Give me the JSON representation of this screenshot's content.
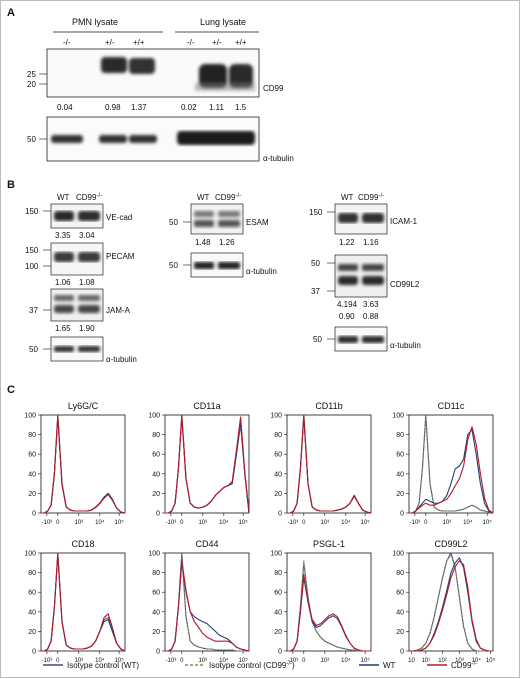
{
  "panelA": {
    "label": "A",
    "pmn_title": "PMN lysate",
    "lung_title": "Lung lysate",
    "genotypes": [
      "-/-",
      "+/-",
      "+/+",
      "-/-",
      "+/-",
      "+/+"
    ],
    "cd99_marker": "CD99",
    "mw_top": [
      "25",
      "20"
    ],
    "quant": [
      "0.04",
      "0.98",
      "1.37",
      "0.02",
      "1.11",
      "1.5"
    ],
    "mw_bottom": "50",
    "tubulin": "α-tubulin"
  },
  "panelB": {
    "label": "B",
    "wt": "WT",
    "ko": "CD99",
    "ko_sup": "-/-",
    "col1": {
      "vecad": {
        "name": "VE-cad",
        "mw": "150",
        "q1": "3.35",
        "q2": "3.04"
      },
      "pecam": {
        "name": "PECAM",
        "mw1": "150",
        "mw2": "100",
        "q1": "1.06",
        "q2": "1.08"
      },
      "jama": {
        "name": "JAM-A",
        "mw": "37",
        "q1": "1.65",
        "q2": "1.90"
      },
      "tub": {
        "name": "α-tubulin",
        "mw": "50"
      }
    },
    "col2": {
      "esam": {
        "name": "ESAM",
        "mw": "50",
        "q1": "1.48",
        "q2": "1.26"
      },
      "tub": {
        "name": "α-tubulin",
        "mw": "50"
      }
    },
    "col3": {
      "icam": {
        "name": "ICAM-1",
        "mw": "150",
        "q1": "1.22",
        "q2": "1.16"
      },
      "cd99l2": {
        "name": "CD99L2",
        "mw1": "50",
        "mw2": "37",
        "q1": "4.194",
        "q2": "3.63",
        "q3": "0.90",
        "q4": "0.88"
      },
      "tub": {
        "name": "α-tubulin",
        "mw": "50"
      }
    }
  },
  "panelC": {
    "label": "C",
    "legend": [
      "Isotype control (WT)",
      "Isotype control (CD99",
      "WT",
      "CD99"
    ],
    "legend_sup": "-/-",
    "legend_close": ")",
    "colors": {
      "iso_wt": "#5a3a8a",
      "iso_ko": "#6f9a4a",
      "wt": "#1c3f7a",
      "ko": "#b5182a"
    }
  },
  "chart_data": [
    {
      "type": "line",
      "title": "Ly6G/C",
      "ylim": [
        0,
        100
      ],
      "yticks": [
        "0",
        "20",
        "40",
        "60",
        "80",
        "100"
      ],
      "xticks": [
        "-10³",
        "0",
        "10³",
        "10⁴",
        "10⁵"
      ],
      "x": [
        0,
        0.04,
        0.08,
        0.12,
        0.16,
        0.2,
        0.25,
        0.3,
        0.35,
        0.4,
        0.45,
        0.5,
        0.55,
        0.6,
        0.65,
        0.7,
        0.75,
        0.8,
        0.85,
        0.9,
        0.95,
        1.0
      ],
      "series": [
        {
          "values": [
            0,
            0,
            2,
            8,
            40,
            100,
            30,
            6,
            3,
            2,
            2,
            2,
            2,
            3,
            6,
            10,
            16,
            20,
            14,
            5,
            1,
            0
          ]
        },
        {
          "values": [
            0,
            0,
            2,
            8,
            42,
            100,
            28,
            6,
            3,
            2,
            2,
            2,
            2,
            3,
            5,
            9,
            15,
            19,
            13,
            5,
            1,
            0
          ]
        },
        {
          "values": [
            0,
            0,
            2,
            8,
            40,
            98,
            30,
            6,
            3,
            2,
            2,
            2,
            2,
            3,
            6,
            10,
            16,
            20,
            14,
            5,
            1,
            0
          ]
        },
        {
          "values": [
            0,
            0,
            2,
            8,
            40,
            99,
            29,
            6,
            3,
            2,
            2,
            2,
            2,
            3,
            6,
            10,
            15,
            19,
            13,
            5,
            1,
            0
          ]
        }
      ]
    },
    {
      "type": "line",
      "title": "CD11a",
      "ylim": [
        0,
        100
      ],
      "yticks": [
        "0",
        "20",
        "40",
        "60",
        "80",
        "100"
      ],
      "xticks": [
        "-10³",
        "0",
        "10³",
        "10⁴",
        "10⁵"
      ],
      "x": [
        0,
        0.04,
        0.08,
        0.12,
        0.16,
        0.2,
        0.25,
        0.3,
        0.35,
        0.4,
        0.45,
        0.5,
        0.55,
        0.6,
        0.65,
        0.7,
        0.75,
        0.8,
        0.85,
        0.9,
        0.95,
        1.0
      ],
      "series": [
        {
          "values": [
            0,
            0,
            2,
            10,
            45,
            100,
            35,
            10,
            6,
            5,
            6,
            8,
            12,
            18,
            22,
            26,
            28,
            30,
            60,
            90,
            40,
            0
          ]
        },
        {
          "values": [
            0,
            0,
            2,
            10,
            45,
            100,
            35,
            10,
            6,
            5,
            6,
            8,
            12,
            18,
            22,
            26,
            28,
            30,
            62,
            92,
            42,
            0
          ]
        },
        {
          "values": [
            0,
            0,
            2,
            10,
            45,
            98,
            35,
            10,
            6,
            5,
            6,
            8,
            12,
            18,
            22,
            26,
            28,
            30,
            60,
            95,
            40,
            0
          ]
        },
        {
          "values": [
            0,
            0,
            2,
            10,
            45,
            99,
            35,
            10,
            6,
            5,
            6,
            8,
            12,
            18,
            22,
            26,
            28,
            32,
            64,
            98,
            42,
            0
          ]
        }
      ]
    },
    {
      "type": "line",
      "title": "CD11b",
      "ylim": [
        0,
        100
      ],
      "yticks": [
        "0",
        "20",
        "40",
        "60",
        "80",
        "100"
      ],
      "xticks": [
        "-10³",
        "0",
        "10³",
        "10⁴",
        "10⁵"
      ],
      "x": [
        0,
        0.04,
        0.08,
        0.12,
        0.16,
        0.2,
        0.25,
        0.3,
        0.35,
        0.4,
        0.45,
        0.5,
        0.55,
        0.6,
        0.65,
        0.7,
        0.75,
        0.8,
        0.85,
        0.9,
        0.95,
        1.0
      ],
      "series": [
        {
          "values": [
            0,
            0,
            2,
            10,
            45,
            100,
            30,
            6,
            3,
            2,
            2,
            2,
            2,
            3,
            4,
            6,
            10,
            18,
            10,
            3,
            1,
            0
          ]
        },
        {
          "values": [
            0,
            0,
            2,
            10,
            45,
            100,
            30,
            6,
            3,
            2,
            2,
            2,
            2,
            3,
            4,
            6,
            10,
            17,
            10,
            3,
            1,
            0
          ]
        },
        {
          "values": [
            0,
            0,
            2,
            10,
            45,
            98,
            30,
            6,
            3,
            2,
            2,
            2,
            2,
            3,
            4,
            6,
            10,
            18,
            10,
            3,
            1,
            0
          ]
        },
        {
          "values": [
            0,
            0,
            2,
            10,
            45,
            99,
            30,
            6,
            3,
            2,
            2,
            2,
            2,
            3,
            4,
            6,
            10,
            17,
            10,
            3,
            1,
            0
          ]
        }
      ]
    },
    {
      "type": "line",
      "title": "CD11c",
      "ylim": [
        0,
        100
      ],
      "yticks": [
        "0",
        "20",
        "40",
        "60",
        "80",
        "100"
      ],
      "xticks": [
        "-10³",
        "0",
        "10³",
        "10⁴",
        "10⁵"
      ],
      "x": [
        0,
        0.04,
        0.08,
        0.12,
        0.16,
        0.2,
        0.25,
        0.3,
        0.35,
        0.4,
        0.45,
        0.5,
        0.55,
        0.6,
        0.65,
        0.7,
        0.75,
        0.8,
        0.85,
        0.9,
        0.95,
        1.0
      ],
      "series": [
        {
          "values": [
            0,
            0,
            2,
            10,
            45,
            100,
            30,
            6,
            3,
            2,
            2,
            2,
            2,
            3,
            4,
            6,
            8,
            6,
            3,
            2,
            1,
            0
          ]
        },
        {
          "values": [
            0,
            0,
            2,
            10,
            45,
            100,
            30,
            6,
            3,
            2,
            2,
            2,
            2,
            3,
            4,
            6,
            8,
            6,
            3,
            2,
            1,
            0
          ]
        },
        {
          "values": [
            0,
            0,
            2,
            6,
            10,
            14,
            12,
            10,
            10,
            12,
            18,
            30,
            45,
            48,
            55,
            80,
            85,
            60,
            30,
            10,
            2,
            0
          ]
        },
        {
          "values": [
            0,
            0,
            2,
            5,
            8,
            10,
            8,
            8,
            10,
            12,
            14,
            20,
            28,
            35,
            48,
            75,
            88,
            70,
            40,
            15,
            3,
            0
          ]
        }
      ]
    },
    {
      "type": "line",
      "title": "CD18",
      "ylim": [
        0,
        100
      ],
      "yticks": [
        "0",
        "20",
        "40",
        "60",
        "80",
        "100"
      ],
      "xticks": [
        "-10³",
        "0",
        "10³",
        "10⁴",
        "10⁵"
      ],
      "x": [
        0,
        0.04,
        0.08,
        0.12,
        0.16,
        0.2,
        0.25,
        0.3,
        0.35,
        0.4,
        0.45,
        0.5,
        0.55,
        0.6,
        0.65,
        0.7,
        0.75,
        0.8,
        0.85,
        0.9,
        0.95,
        1.0
      ],
      "series": [
        {
          "values": [
            0,
            0,
            2,
            10,
            45,
            100,
            30,
            6,
            3,
            2,
            2,
            2,
            3,
            5,
            10,
            20,
            32,
            34,
            22,
            8,
            2,
            0
          ]
        },
        {
          "values": [
            0,
            0,
            2,
            10,
            45,
            100,
            30,
            6,
            3,
            2,
            2,
            2,
            3,
            5,
            10,
            20,
            32,
            34,
            22,
            8,
            2,
            0
          ]
        },
        {
          "values": [
            0,
            0,
            2,
            10,
            45,
            98,
            30,
            6,
            3,
            2,
            2,
            2,
            3,
            5,
            10,
            20,
            30,
            32,
            20,
            8,
            2,
            0
          ]
        },
        {
          "values": [
            0,
            0,
            2,
            10,
            45,
            99,
            30,
            6,
            3,
            2,
            2,
            2,
            3,
            5,
            10,
            20,
            34,
            38,
            24,
            8,
            2,
            0
          ]
        }
      ]
    },
    {
      "type": "line",
      "title": "CD44",
      "ylim": [
        0,
        100
      ],
      "yticks": [
        "0",
        "20",
        "40",
        "60",
        "80",
        "100"
      ],
      "xticks": [
        "-10³",
        "0",
        "10³",
        "10⁴",
        "10⁵"
      ],
      "x": [
        0,
        0.04,
        0.08,
        0.12,
        0.16,
        0.2,
        0.25,
        0.3,
        0.35,
        0.4,
        0.45,
        0.5,
        0.55,
        0.6,
        0.65,
        0.7,
        0.75,
        0.8,
        0.85,
        0.9,
        0.95,
        1.0
      ],
      "series": [
        {
          "values": [
            0,
            0,
            2,
            10,
            45,
            100,
            35,
            10,
            6,
            4,
            3,
            2,
            2,
            1,
            1,
            1,
            1,
            1,
            0,
            0,
            0,
            0
          ]
        },
        {
          "values": [
            0,
            0,
            2,
            10,
            45,
            100,
            35,
            10,
            6,
            4,
            3,
            2,
            2,
            1,
            1,
            1,
            1,
            1,
            0,
            0,
            0,
            0
          ]
        },
        {
          "values": [
            0,
            0,
            2,
            10,
            45,
            90,
            60,
            40,
            35,
            32,
            30,
            28,
            24,
            20,
            16,
            14,
            12,
            8,
            4,
            2,
            1,
            0
          ]
        },
        {
          "values": [
            0,
            0,
            2,
            10,
            45,
            92,
            62,
            40,
            30,
            24,
            18,
            14,
            12,
            10,
            10,
            10,
            10,
            8,
            4,
            2,
            1,
            0
          ]
        }
      ]
    },
    {
      "type": "line",
      "title": "PSGL-1",
      "ylim": [
        0,
        100
      ],
      "yticks": [
        "0",
        "20",
        "40",
        "60",
        "80",
        "100"
      ],
      "xticks": [
        "-10³",
        "0",
        "10³",
        "10⁴",
        "10⁵"
      ],
      "x": [
        0,
        0.04,
        0.08,
        0.12,
        0.16,
        0.2,
        0.25,
        0.3,
        0.35,
        0.4,
        0.45,
        0.5,
        0.55,
        0.6,
        0.65,
        0.7,
        0.75,
        0.8,
        0.85,
        0.9,
        0.95,
        1.0
      ],
      "series": [
        {
          "values": [
            0,
            0,
            2,
            10,
            45,
            90,
            55,
            30,
            20,
            14,
            10,
            8,
            6,
            4,
            3,
            2,
            1,
            1,
            0,
            0,
            0,
            0
          ]
        },
        {
          "values": [
            0,
            0,
            2,
            10,
            45,
            92,
            55,
            30,
            20,
            14,
            10,
            8,
            6,
            4,
            3,
            2,
            1,
            1,
            0,
            0,
            0,
            0
          ]
        },
        {
          "values": [
            0,
            0,
            2,
            10,
            40,
            75,
            50,
            30,
            24,
            26,
            30,
            34,
            36,
            33,
            25,
            15,
            8,
            3,
            1,
            0,
            0,
            0
          ]
        },
        {
          "values": [
            0,
            0,
            2,
            10,
            40,
            78,
            50,
            32,
            26,
            28,
            32,
            36,
            38,
            35,
            26,
            16,
            8,
            3,
            1,
            0,
            0,
            0
          ]
        }
      ]
    },
    {
      "type": "line",
      "title": "CD99L2",
      "ylim": [
        0,
        100
      ],
      "yticks": [
        "0",
        "20",
        "40",
        "60",
        "80",
        "100"
      ],
      "xticks": [
        "10",
        "10¹",
        "10²",
        "10³",
        "10⁴",
        "10⁵"
      ],
      "x": [
        0,
        0.05,
        0.1,
        0.15,
        0.2,
        0.25,
        0.3,
        0.35,
        0.4,
        0.45,
        0.5,
        0.55,
        0.6,
        0.65,
        0.7,
        0.75,
        0.8,
        0.85,
        0.9,
        0.95,
        1.0
      ],
      "series": [
        {
          "values": [
            0,
            0,
            1,
            3,
            8,
            18,
            35,
            55,
            75,
            92,
            100,
            85,
            55,
            25,
            8,
            2,
            0,
            0,
            0,
            0,
            0
          ]
        },
        {
          "values": [
            0,
            0,
            1,
            3,
            8,
            18,
            35,
            55,
            75,
            92,
            98,
            85,
            55,
            25,
            8,
            2,
            0,
            0,
            0,
            0,
            0
          ]
        },
        {
          "values": [
            0,
            0,
            0,
            1,
            3,
            8,
            18,
            30,
            45,
            62,
            80,
            90,
            95,
            85,
            60,
            30,
            10,
            3,
            1,
            0,
            0
          ]
        },
        {
          "values": [
            0,
            0,
            0,
            1,
            3,
            8,
            16,
            28,
            42,
            58,
            75,
            86,
            92,
            88,
            65,
            32,
            12,
            3,
            1,
            0,
            0
          ]
        }
      ]
    }
  ]
}
